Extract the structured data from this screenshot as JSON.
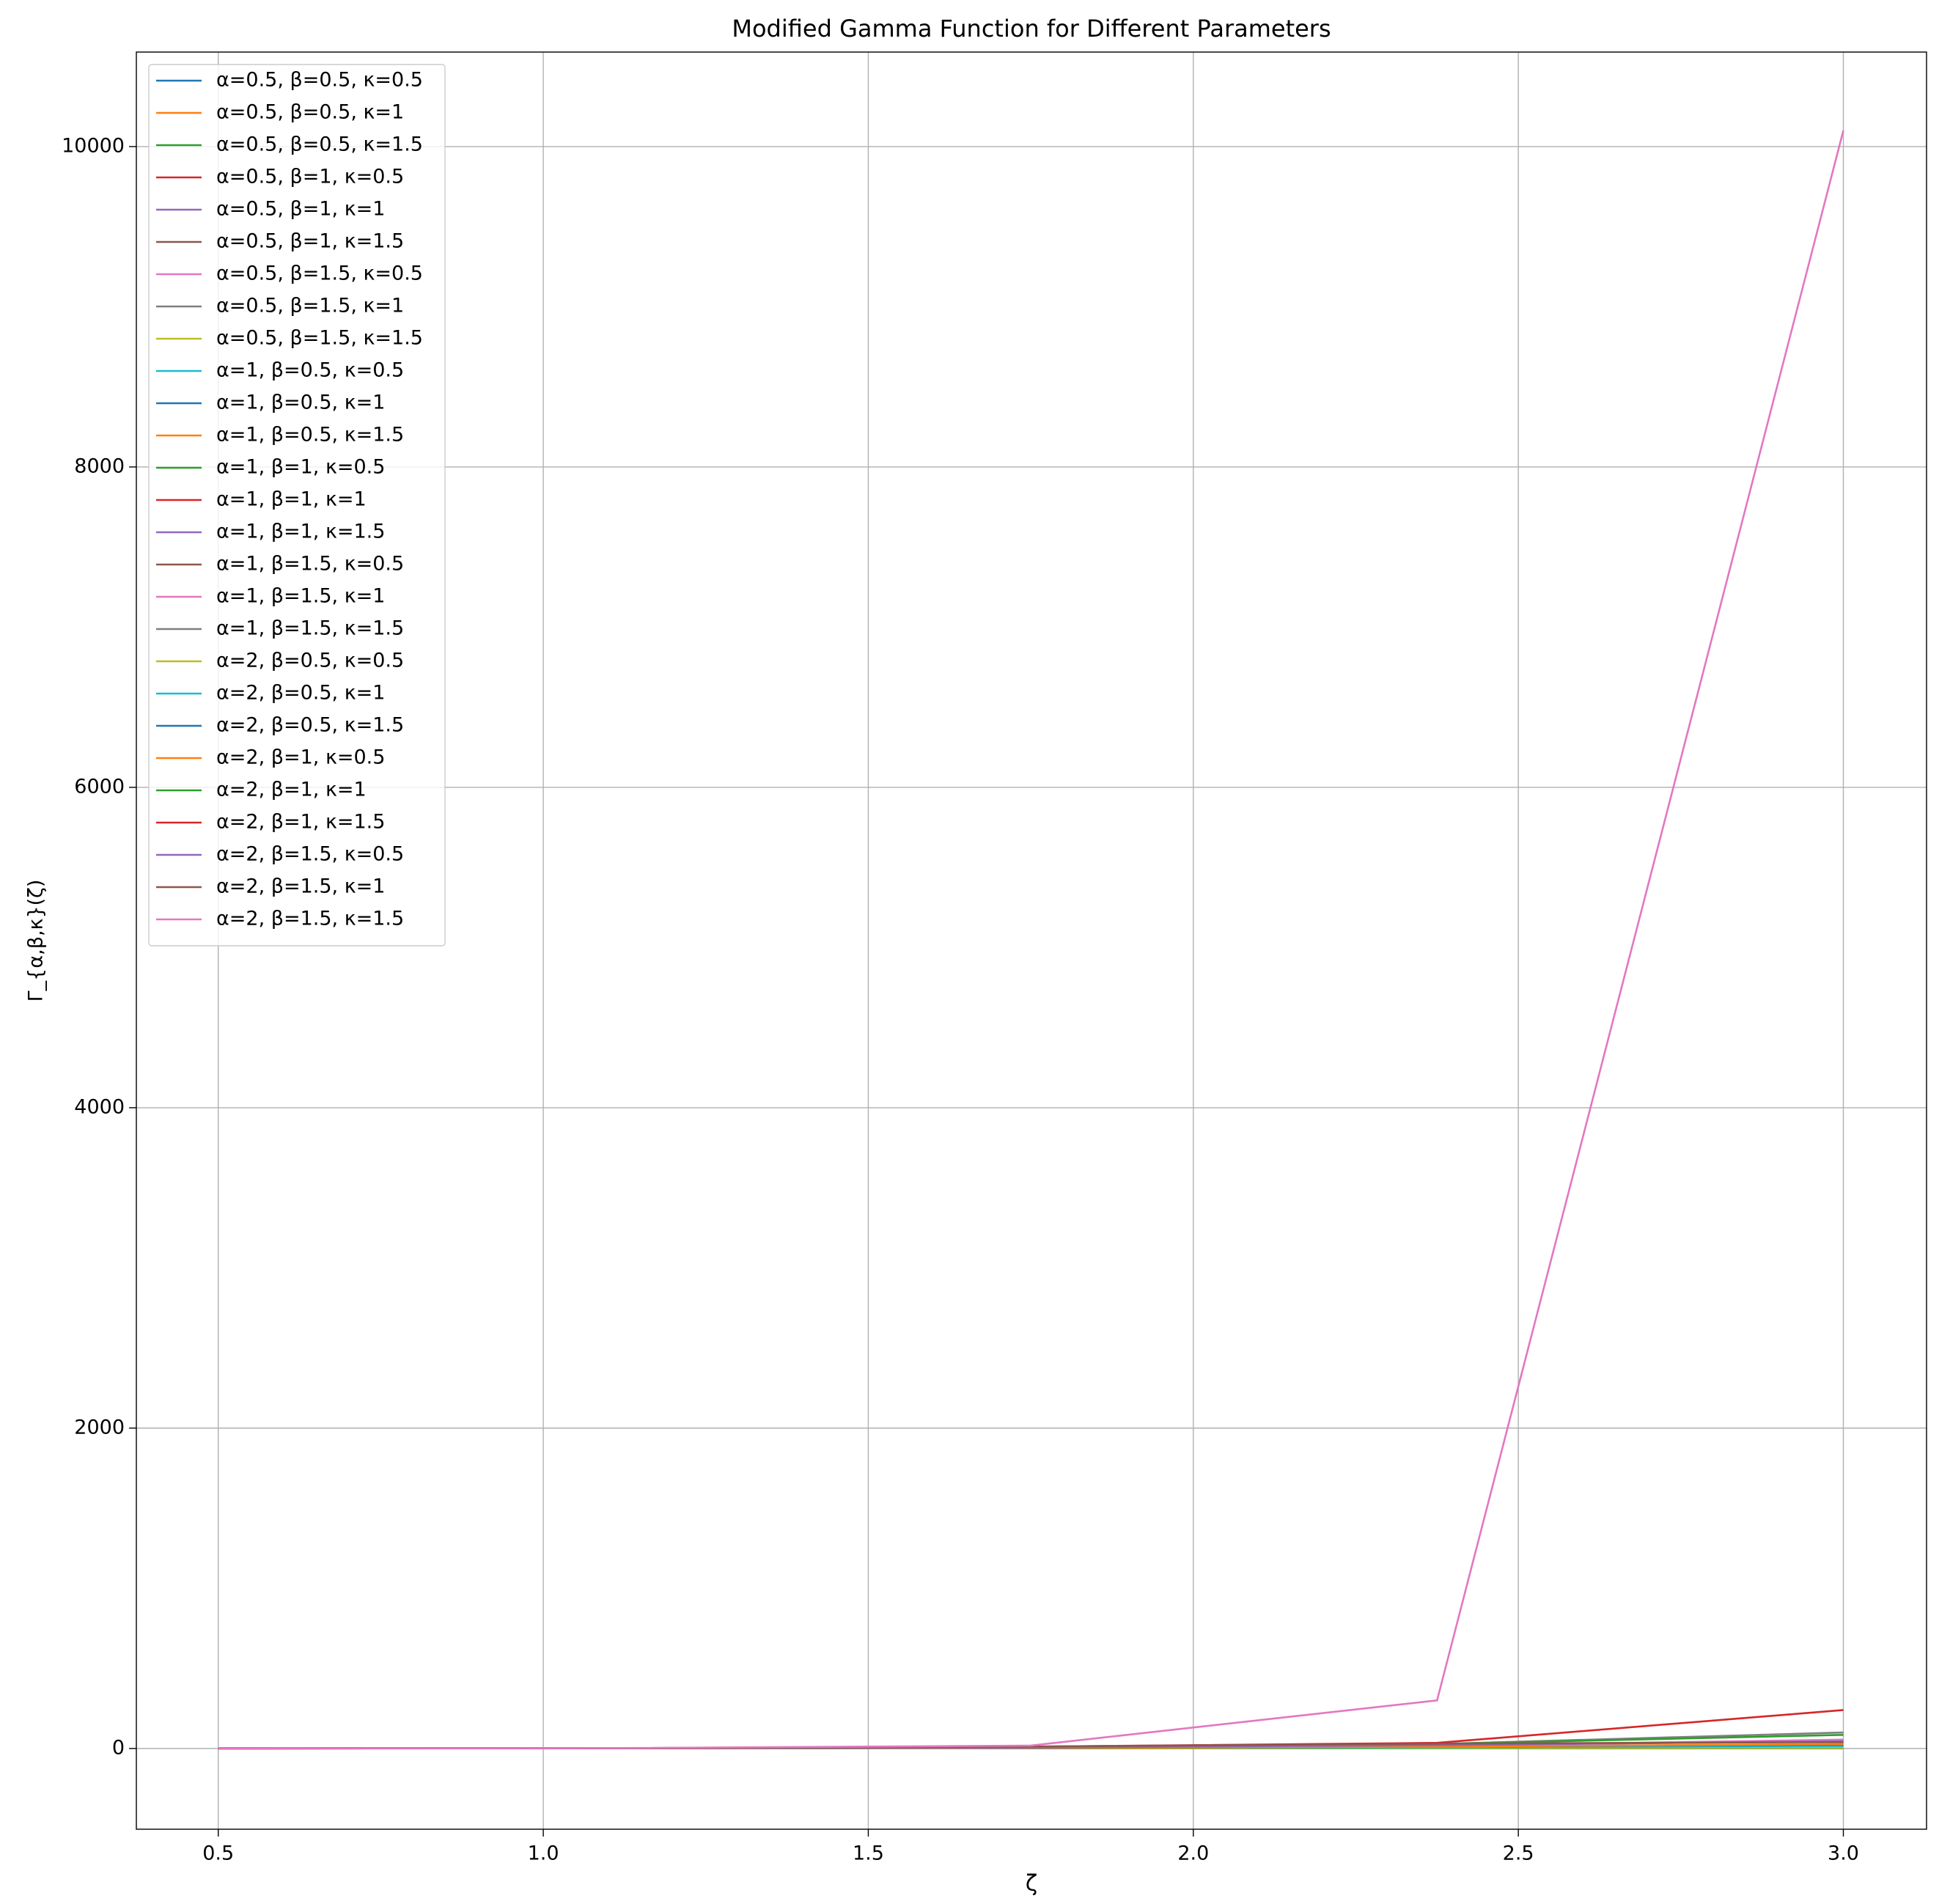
{
  "chart_data": {
    "type": "line",
    "title": "Modified Gamma Function for Different Parameters",
    "x_label": "ζ",
    "y_label": "Γ_{α,β,κ}(ζ)",
    "x": [
      0.5,
      1.125,
      1.75,
      2.375,
      3.0
    ],
    "xlim": [
      0.374,
      3.128
    ],
    "ylim": [
      -504,
      10590
    ],
    "xticks": [
      0.5,
      {
        "value": 1.0,
        "label": "1.0"
      },
      1.5,
      {
        "value": 2.0,
        "label": "2.0"
      },
      2.5,
      {
        "value": 3.0,
        "label": "3.0"
      }
    ],
    "yticks": [
      0,
      2000,
      4000,
      6000,
      8000,
      10000
    ],
    "grid": true,
    "legend": "upper left",
    "series": [
      {
        "name": "α=0.5, β=0.5, κ=0.5",
        "color": "#1f77b4",
        "values": [
          1.77,
          1.5,
          1.45,
          1.55,
          1.8
        ]
      },
      {
        "name": "α=0.5, β=0.5, κ=1",
        "color": "#ff7f0e",
        "values": [
          1.0,
          0.9,
          0.9,
          1.0,
          1.2
        ]
      },
      {
        "name": "α=0.5, β=0.5, κ=1.5",
        "color": "#2ca02c",
        "values": [
          0.9,
          0.85,
          0.9,
          1.0,
          1.2
        ]
      },
      {
        "name": "α=0.5, β=1, κ=0.5",
        "color": "#d62728",
        "values": [
          1.77,
          1.13,
          1.29,
          2.0,
          3.9
        ]
      },
      {
        "name": "α=0.5, β=1, κ=1",
        "color": "#9467bd",
        "values": [
          1.0,
          0.95,
          1.0,
          1.3,
          2.0
        ]
      },
      {
        "name": "α=0.5, β=1, κ=1.5",
        "color": "#8c564b",
        "values": [
          0.9,
          0.9,
          1.0,
          1.3,
          2.2
        ]
      },
      {
        "name": "α=0.5, β=1.5, κ=0.5",
        "color": "#e377c2",
        "values": [
          1.77,
          0.95,
          1.6,
          3.5,
          9.5
        ]
      },
      {
        "name": "α=0.5, β=1.5, κ=1",
        "color": "#7f7f7f",
        "values": [
          1.0,
          0.98,
          1.3,
          2.5,
          6.0
        ]
      },
      {
        "name": "α=0.5, β=1.5, κ=1.5",
        "color": "#bcbd22",
        "values": [
          0.95,
          1.0,
          1.4,
          3.0,
          8.0
        ]
      },
      {
        "name": "α=1, β=0.5, κ=0.5",
        "color": "#17becf",
        "values": [
          1.0,
          1.0,
          1.1,
          1.3,
          1.5
        ]
      },
      {
        "name": "α=1, β=0.5, κ=1",
        "color": "#1f77b4",
        "values": [
          0.5,
          0.95,
          1.5,
          2.3,
          3.3
        ]
      },
      {
        "name": "α=1, β=0.5, κ=1.5",
        "color": "#ff7f0e",
        "values": [
          0.6,
          1.0,
          1.6,
          2.6,
          4.0
        ]
      },
      {
        "name": "α=1, β=1, κ=0.5",
        "color": "#2ca02c",
        "values": [
          1.0,
          0.9,
          1.2,
          2.3,
          5.0
        ]
      },
      {
        "name": "α=1, β=1, κ=1",
        "color": "#d62728",
        "values": [
          0.5,
          1.1,
          2.6,
          5.6,
          11
        ]
      },
      {
        "name": "α=1, β=1, κ=1.5",
        "color": "#9467bd",
        "values": [
          0.6,
          1.2,
          3.2,
          7.5,
          16
        ]
      },
      {
        "name": "α=1, β=1.5, κ=0.5",
        "color": "#8c564b",
        "values": [
          1.0,
          1.0,
          2.0,
          6.0,
          20
        ]
      },
      {
        "name": "α=1, β=1.5, κ=1",
        "color": "#e377c2",
        "values": [
          0.5,
          1.3,
          5,
          18,
          55
        ]
      },
      {
        "name": "α=1, β=1.5, κ=1.5",
        "color": "#7f7f7f",
        "values": [
          0.6,
          1.5,
          7,
          28,
          100
        ]
      },
      {
        "name": "α=2, β=0.5, κ=0.5",
        "color": "#bcbd22",
        "values": [
          0.8,
          1.1,
          1.7,
          2.6,
          4
        ]
      },
      {
        "name": "α=2, β=0.5, κ=1",
        "color": "#17becf",
        "values": [
          0.2,
          1.0,
          3.2,
          7.5,
          15
        ]
      },
      {
        "name": "α=2, β=0.5, κ=1.5",
        "color": "#1f77b4",
        "values": [
          0.25,
          1.2,
          4.2,
          11,
          24
        ]
      },
      {
        "name": "α=2, β=1, κ=0.5",
        "color": "#ff7f0e",
        "values": [
          0.8,
          1.4,
          4,
          11,
          28
        ]
      },
      {
        "name": "α=2, β=1, κ=1",
        "color": "#2ca02c",
        "values": [
          0.2,
          1.4,
          8,
          28,
          85
        ]
      },
      {
        "name": "α=2, β=1, κ=1.5",
        "color": "#d62728",
        "values": [
          0.25,
          1.7,
          11,
          35,
          240
        ]
      },
      {
        "name": "α=2, β=1.5, κ=0.5",
        "color": "#9467bd",
        "values": [
          0.8,
          1.5,
          6,
          20,
          45
        ]
      },
      {
        "name": "α=2, β=1.5, κ=1",
        "color": "#8c564b",
        "values": [
          0.2,
          1.9,
          12,
          30,
          40
        ]
      },
      {
        "name": "α=2, β=1.5, κ=1.5",
        "color": "#e377c2",
        "values": [
          0.25,
          2.5,
          18,
          300,
          10100
        ]
      }
    ]
  }
}
